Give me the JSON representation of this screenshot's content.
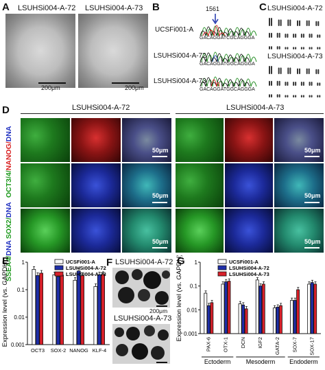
{
  "panels": {
    "A": {
      "letter": "A",
      "left_title": "LSUHSi004-A-72",
      "right_title": "LSUHSi004-A-73",
      "scale_left": "200μm",
      "scale_right": "200μm"
    },
    "B": {
      "letter": "B",
      "position": "1561",
      "rows": [
        {
          "name": "UCSFi001-A",
          "seq": "GACAGGATCGCAGGGA"
        },
        {
          "name": "LSUHSi004-A-72",
          "seq": "GACAGGATGGCAGGGA"
        },
        {
          "name": "LSUHSi004-A-73",
          "seq": "GACAGGATGGCAGGGA"
        }
      ]
    },
    "C": {
      "letter": "C",
      "top_title": "LSUHSi004-A-72",
      "bottom_title": "LSUHSi004-A-73"
    },
    "D": {
      "letter": "D",
      "col_left": "LSUHSi004-A-72",
      "col_right": "LSUHSi004-A-73",
      "row1": {
        "a": "OCT3/4/",
        "b": "NANOG/",
        "c": "DNA"
      },
      "row2": {
        "a": "SOX2/",
        "b": "DNA"
      },
      "row3": {
        "a": "SSEA4/",
        "b": "DNA"
      },
      "scale": "50μm"
    },
    "F": {
      "letter": "F",
      "top_title": "LSUHSi004-A-72",
      "bottom_title": "LSUHSi004-A-73",
      "scale": "200μm"
    }
  },
  "chart_data": [
    {
      "letter": "E",
      "type": "bar",
      "ylabel": "Expression level (vs. GAPDH)",
      "yscale": "log",
      "ylim": [
        0.001,
        1
      ],
      "yticks": [
        "1",
        "0.1",
        "0.01",
        "0.001"
      ],
      "legend_position": "top-right",
      "categories": [
        "OCT3",
        "SOX-2",
        "NANOG",
        "KLF-4"
      ],
      "series": [
        {
          "name": "UCSFi001-A",
          "color": "#ffffff",
          "values": [
            0.55,
            0.35,
            0.22,
            0.13
          ]
        },
        {
          "name": "LSUHSi004-A-72",
          "color": "#1f2ea8",
          "values": [
            0.33,
            0.3,
            0.48,
            0.35
          ]
        },
        {
          "name": "LSUHSi004-A-73",
          "color": "#d8202a",
          "values": [
            0.4,
            0.34,
            0.33,
            0.36
          ]
        }
      ]
    },
    {
      "letter": "G",
      "type": "bar",
      "ylabel": "Expression level (vs. GAPDH)",
      "yscale": "log",
      "ylim": [
        0.001,
        1
      ],
      "yticks": [
        "1",
        "0.1",
        "0.01",
        "0.001"
      ],
      "legend_position": "top-left",
      "categories": [
        "PAX-6",
        "OTX-1",
        "DCN",
        "IGF2",
        "GATA-2",
        "SOX-7",
        "SOX-17"
      ],
      "groups": [
        {
          "label": "Ectoderm",
          "categories": [
            "PAX-6",
            "OTX-1"
          ]
        },
        {
          "label": "Mesoderm",
          "categories": [
            "DCN",
            "IGF2",
            "GATA-2"
          ]
        },
        {
          "label": "Endoderm",
          "categories": [
            "SOX-7",
            "SOX-17"
          ]
        }
      ],
      "series": [
        {
          "name": "UCSFi001-A",
          "color": "#ffffff",
          "values": [
            0.05,
            0.12,
            0.018,
            0.18,
            0.012,
            0.025,
            0.12
          ]
        },
        {
          "name": "LSUHSi004-A-72",
          "color": "#1f2ea8",
          "values": [
            0.015,
            0.15,
            0.016,
            0.1,
            0.013,
            0.025,
            0.14
          ]
        },
        {
          "name": "LSUHSi004-A-73",
          "color": "#d8202a",
          "values": [
            0.02,
            0.16,
            0.011,
            0.12,
            0.015,
            0.07,
            0.12
          ]
        }
      ]
    }
  ]
}
